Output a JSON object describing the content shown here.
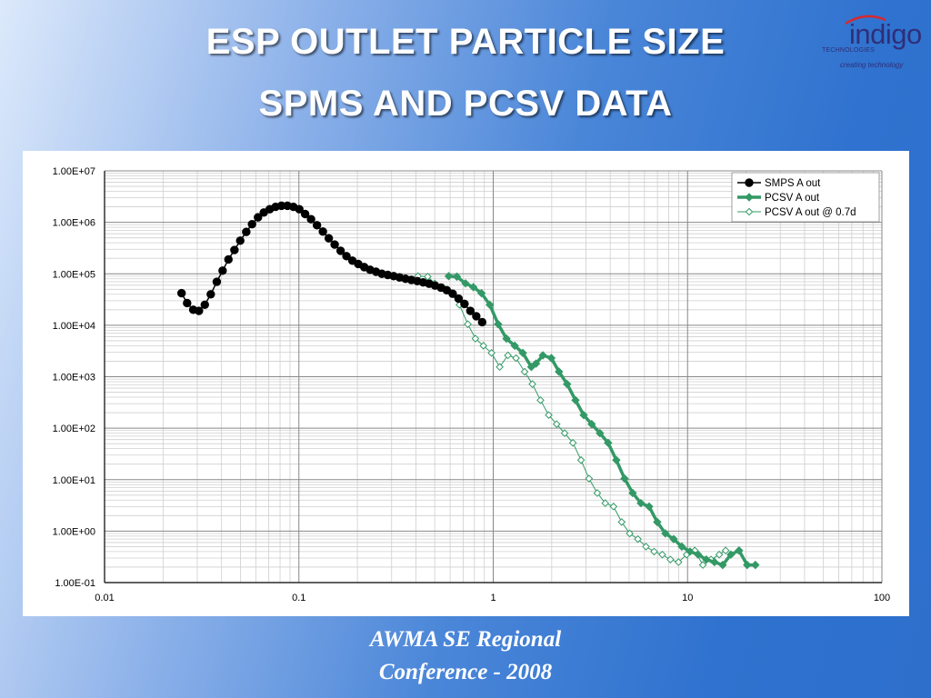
{
  "slide": {
    "title_line1": "ESP OUTLET PARTICLE SIZE",
    "title_line2": "SPMS AND PCSV DATA",
    "footer_line1": "AWMA SE Regional",
    "footer_line2": "Conference - 2008"
  },
  "logo": {
    "word": "indigo",
    "sub": "TECHNOLOGIES",
    "tagline": "creating technology",
    "color": "#2f2f78",
    "accent": "#d8282d"
  },
  "chart_data": {
    "type": "scatter",
    "xscale": "log",
    "yscale": "log",
    "xlim": [
      0.01,
      100
    ],
    "ylim": [
      0.1,
      10000000
    ],
    "x_tick_labels": [
      "0.01",
      "0.1",
      "1",
      "10",
      "100"
    ],
    "y_tick_labels": [
      "1.00E-01",
      "1.00E+00",
      "1.00E+01",
      "1.00E+02",
      "1.00E+03",
      "1.00E+04",
      "1.00E+05",
      "1.00E+06",
      "1.00E+07"
    ],
    "grid": true,
    "legend_position": "top-right",
    "series": [
      {
        "name": "SMPS A out",
        "color": "#000000",
        "marker": "filled-circle",
        "line_width": 1.5,
        "x": [
          0.0249,
          0.0266,
          0.0286,
          0.0306,
          0.0328,
          0.0352,
          0.0378,
          0.0405,
          0.0434,
          0.0466,
          0.0499,
          0.0536,
          0.0574,
          0.0616,
          0.066,
          0.0708,
          0.0759,
          0.0814,
          0.0873,
          0.0937,
          0.1005,
          0.1077,
          0.1155,
          0.1239,
          0.1329,
          0.1425,
          0.1528,
          0.1639,
          0.1757,
          0.1885,
          0.2021,
          0.2168,
          0.2325,
          0.2493,
          0.2673,
          0.2867,
          0.3075,
          0.3297,
          0.3536,
          0.3792,
          0.4066,
          0.4361,
          0.4677,
          0.5015,
          0.5378,
          0.5767,
          0.6185,
          0.6633,
          0.7113,
          0.7628,
          0.818,
          0.877
        ],
        "y": [
          42000,
          27000,
          20000,
          19000,
          25000,
          40000,
          70000,
          115000,
          190000,
          290000,
          440000,
          650000,
          920000,
          1250000,
          1550000,
          1800000,
          2000000,
          2100000,
          2100000,
          2000000,
          1800000,
          1450000,
          1150000,
          880000,
          660000,
          490000,
          370000,
          280000,
          220000,
          180000,
          155000,
          135000,
          120000,
          110000,
          100000,
          95000,
          90000,
          85000,
          80000,
          76000,
          72000,
          68000,
          64000,
          59000,
          54000,
          48000,
          41000,
          33000,
          26000,
          19000,
          15000,
          11500
        ]
      },
      {
        "name": "PCSV A out",
        "color": "#339966",
        "marker": "filled-diamond",
        "line_width": 3.5,
        "x": [
          0.59,
          0.65,
          0.72,
          0.79,
          0.87,
          0.96,
          1.06,
          1.17,
          1.29,
          1.42,
          1.57,
          1.66,
          1.8,
          1.99,
          2.18,
          2.4,
          2.65,
          2.92,
          3.21,
          3.54,
          3.9,
          4.3,
          4.74,
          5.22,
          5.75,
          6.34,
          6.98,
          7.69,
          8.48,
          9.34,
          10.29,
          11.33,
          12.49,
          13.76,
          15.16,
          16.7,
          18.4,
          20.27,
          22.33
        ],
        "y": [
          90000,
          88000,
          65000,
          55000,
          42000,
          25000,
          10500,
          5500,
          4000,
          2900,
          1550,
          1800,
          2600,
          2300,
          1250,
          720,
          350,
          180,
          120,
          80,
          52,
          24,
          10.5,
          5.5,
          3.5,
          3.0,
          1.5,
          0.9,
          0.7,
          0.5,
          0.4,
          0.35,
          0.28,
          0.25,
          0.22,
          0.35,
          0.42,
          0.22,
          0.22
        ]
      },
      {
        "name": "PCSV A out @ 0.7d",
        "color": "#339966",
        "marker": "hollow-diamond",
        "line_width": 1,
        "x": [
          0.41,
          0.46,
          0.5,
          0.55,
          0.61,
          0.67,
          0.74,
          0.81,
          0.89,
          0.98,
          1.08,
          1.19,
          1.31,
          1.45,
          1.59,
          1.75,
          1.93,
          2.12,
          2.33,
          2.57,
          2.83,
          3.11,
          3.43,
          3.77,
          4.16,
          4.58,
          5.04,
          5.55,
          6.11,
          6.73,
          7.41,
          8.16,
          8.98,
          9.89,
          10.89,
          11.99,
          13.21,
          14.55,
          15.7
        ],
        "y": [
          90000,
          88000,
          65000,
          55000,
          42000,
          25000,
          10500,
          5500,
          4000,
          2900,
          1550,
          2600,
          2300,
          1250,
          720,
          350,
          180,
          120,
          80,
          52,
          24,
          10.5,
          5.5,
          3.5,
          3.0,
          1.5,
          0.9,
          0.7,
          0.5,
          0.4,
          0.35,
          0.28,
          0.25,
          0.35,
          0.42,
          0.22,
          0.28,
          0.35,
          0.42
        ]
      }
    ]
  }
}
